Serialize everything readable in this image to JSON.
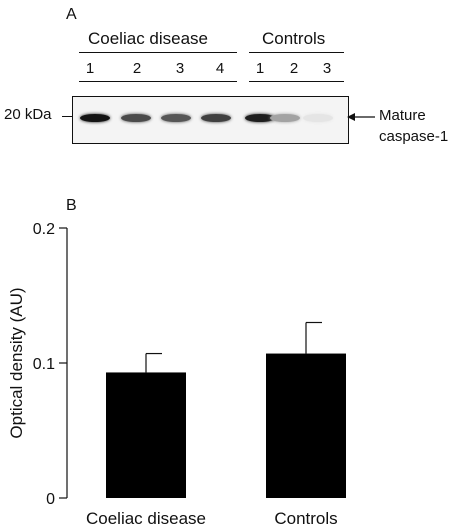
{
  "panel_a": {
    "letter": "A",
    "groups": [
      {
        "label": "Coeliac disease",
        "lanes": [
          "1",
          "2",
          "3",
          "4"
        ]
      },
      {
        "label": "Controls",
        "lanes": [
          "1",
          "2",
          "3"
        ]
      }
    ],
    "marker_label": "20 kDa",
    "annotation_line1": "Mature",
    "annotation_line2": "caspase-1",
    "band_intensities": [
      1.0,
      0.75,
      0.7,
      0.8,
      0.95,
      0.35,
      0.05
    ]
  },
  "panel_b": {
    "letter": "B"
  },
  "chart_data": {
    "type": "bar",
    "categories": [
      "Coeliac disease",
      "Controls"
    ],
    "values": [
      0.093,
      0.107
    ],
    "error_upper": [
      0.014,
      0.023
    ],
    "ylabel": "Optical density (AU)",
    "xlabel": "",
    "ylim": [
      0,
      0.2
    ],
    "yticks": [
      0,
      0.1,
      0.2
    ],
    "ytick_labels": [
      "0",
      "0.1",
      "0.2"
    ],
    "bar_color": "#000000",
    "grid": false
  }
}
